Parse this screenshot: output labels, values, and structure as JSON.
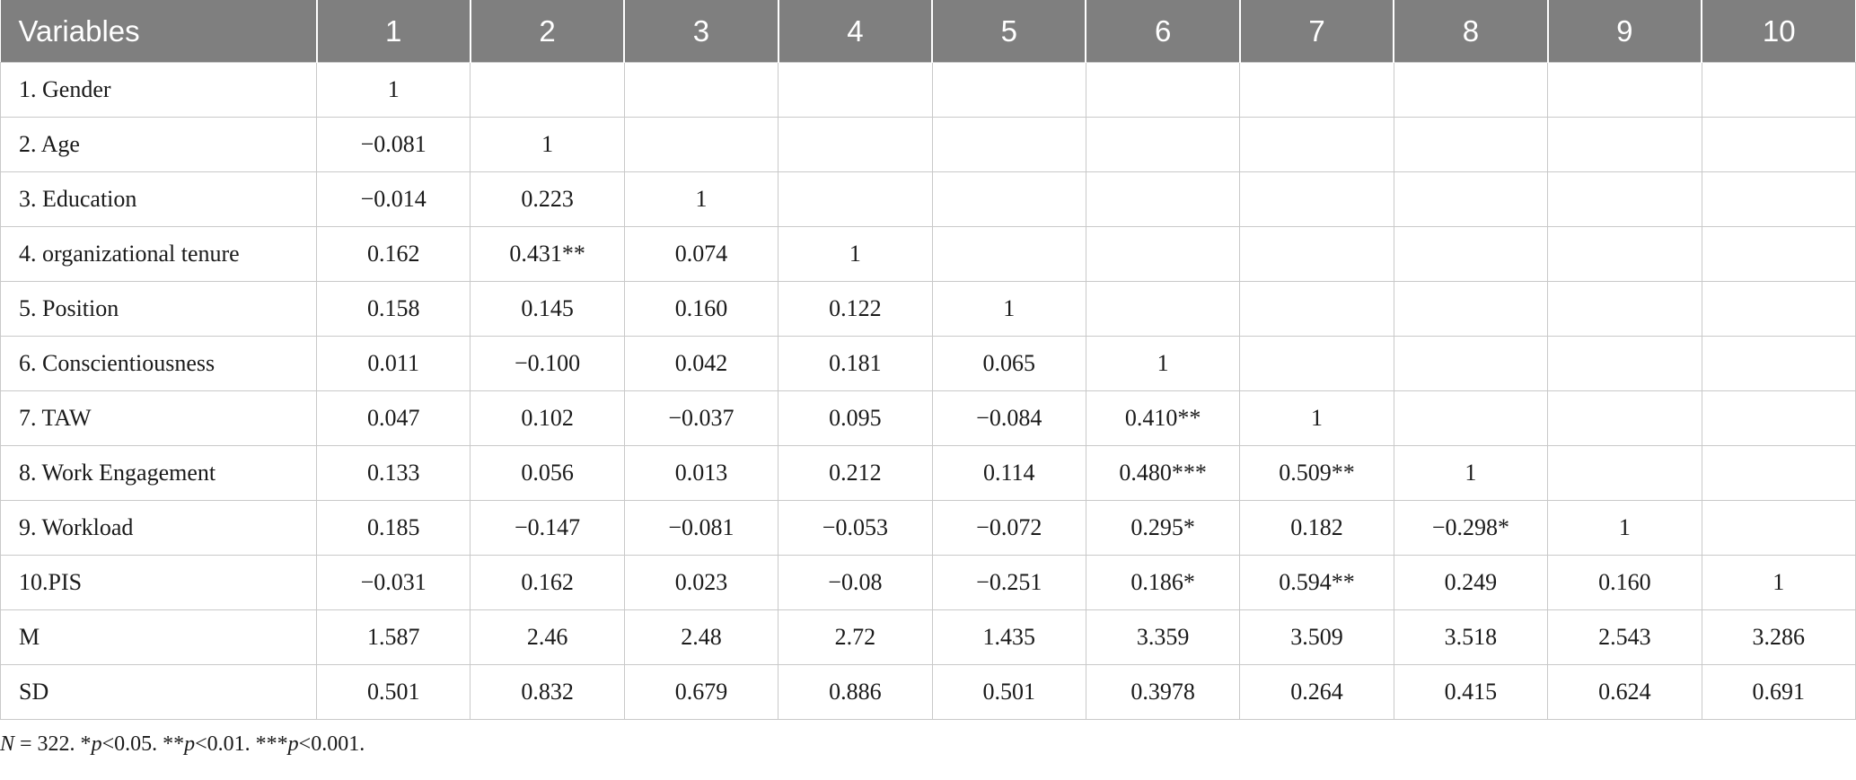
{
  "table": {
    "headers": [
      "Variables",
      "1",
      "2",
      "3",
      "4",
      "5",
      "6",
      "7",
      "8",
      "9",
      "10"
    ],
    "rows": [
      [
        "1. Gender",
        "1",
        "",
        "",
        "",
        "",
        "",
        "",
        "",
        "",
        ""
      ],
      [
        "2. Age",
        "−0.081",
        "1",
        "",
        "",
        "",
        "",
        "",
        "",
        "",
        ""
      ],
      [
        "3. Education",
        "−0.014",
        "0.223",
        "1",
        "",
        "",
        "",
        "",
        "",
        "",
        ""
      ],
      [
        "4. organizational tenure",
        "0.162",
        "0.431**",
        "0.074",
        "1",
        "",
        "",
        "",
        "",
        "",
        ""
      ],
      [
        "5. Position",
        "0.158",
        "0.145",
        "0.160",
        "0.122",
        "1",
        "",
        "",
        "",
        "",
        ""
      ],
      [
        "6. Conscientiousness",
        "0.011",
        "−0.100",
        "0.042",
        "0.181",
        "0.065",
        "1",
        "",
        "",
        "",
        ""
      ],
      [
        "7. TAW",
        "0.047",
        "0.102",
        "−0.037",
        "0.095",
        "−0.084",
        "0.410**",
        "1",
        "",
        "",
        ""
      ],
      [
        "8. Work Engagement",
        "0.133",
        "0.056",
        "0.013",
        "0.212",
        "0.114",
        "0.480***",
        "0.509**",
        "1",
        "",
        ""
      ],
      [
        "9. Workload",
        "0.185",
        "−0.147",
        "−0.081",
        "−0.053",
        "−0.072",
        "0.295*",
        "0.182",
        "−0.298*",
        "1",
        ""
      ],
      [
        "10.PIS",
        "−0.031",
        "0.162",
        "0.023",
        "−0.08",
        "−0.251",
        "0.186*",
        "0.594**",
        "0.249",
        "0.160",
        "1"
      ],
      [
        "M",
        "1.587",
        "2.46",
        "2.48",
        "2.72",
        "1.435",
        "3.359",
        "3.509",
        "3.518",
        "2.543",
        "3.286"
      ],
      [
        "SD",
        "0.501",
        "0.832",
        "0.679",
        "0.886",
        "0.501",
        "0.3978",
        "0.264",
        "0.415",
        "0.624",
        "0.691"
      ]
    ]
  },
  "note": {
    "n_label": "N",
    "n_value": " = 322. *",
    "p1": "p",
    "t1": "<0.05. **",
    "p2": "p",
    "t2": "<0.01. ***",
    "p3": "p",
    "t3": "<0.001."
  },
  "colors": {
    "header_bg": "#7f7f7f",
    "header_text": "#ffffff",
    "grid": "#c9c9c9"
  }
}
